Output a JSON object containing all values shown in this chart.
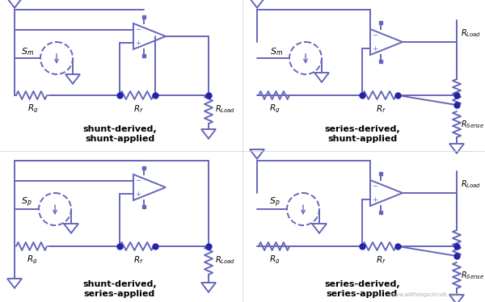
{
  "bg_color": "#ffffff",
  "lc": "#6666bb",
  "lc_dark": "#3333aa",
  "dc": "#2222aa",
  "lw": 1.4,
  "figsize": [
    6.0,
    3.74
  ],
  "dpi": 100,
  "labels": {
    "tl": "shunt-derived,\nshunt-applied",
    "tr": "series-derived,\nshunt-applied",
    "bl": "shunt-derived,\nseries-applied",
    "br": "series-derived,\nseries-applied"
  },
  "watermark": "www.allthingscircuit.com"
}
